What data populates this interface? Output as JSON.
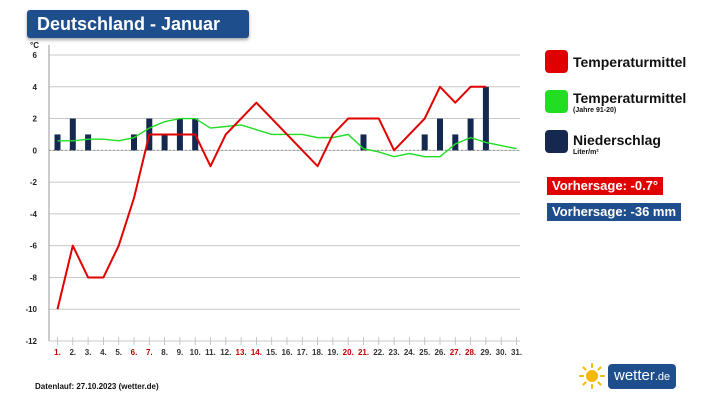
{
  "page_title": "Deutschland - Januar",
  "legend": {
    "temp": "Temperaturmittel",
    "normal": "Temperaturmittel",
    "normal_sub": "(Jahre 91-20)",
    "precip": "Niederschlag",
    "precip_sub": "Liter/m²"
  },
  "forecast": {
    "temp": "Vorhersage: -0.7°",
    "precip": "Vorhersage: -36 mm"
  },
  "footer": "Datenlauf: 27.10.2023 (wetter.de)",
  "brand": {
    "name": "wetter",
    "tld": ".de"
  },
  "colors": {
    "temp": "#e10000",
    "normal": "#22dd22",
    "precip": "#142850",
    "badge_temp": "#e10000",
    "badge_precip": "#1f4e8c",
    "header": "#1f4e8c",
    "weekend_label": "#c00000"
  },
  "chart_data": {
    "type": "line",
    "ylabel": "°C",
    "ylim": [
      -12,
      6
    ],
    "yticks": [
      "6",
      "4",
      "2",
      "0",
      "-2",
      "-4",
      "-6",
      "-8",
      "-10",
      "-12"
    ],
    "categories": [
      "1.",
      "2.",
      "3.",
      "4.",
      "5.",
      "6.",
      "7.",
      "8.",
      "9.",
      "10.",
      "11.",
      "12.",
      "13.",
      "14.",
      "15.",
      "16.",
      "17.",
      "18.",
      "19.",
      "20.",
      "21.",
      "22.",
      "23.",
      "24.",
      "25.",
      "26.",
      "27.",
      "28.",
      "29.",
      "30.",
      "31."
    ],
    "weekend_days": [
      1,
      6,
      7,
      13,
      14,
      20,
      21,
      27,
      28
    ],
    "grid": true,
    "series": [
      {
        "name": "Temperaturmittel",
        "type": "line",
        "values": [
          -10,
          -6,
          -8,
          -8,
          -6,
          -3,
          1,
          1,
          1,
          1,
          -1,
          1,
          2,
          3,
          2,
          1,
          0,
          -1,
          1,
          2,
          2,
          2,
          0,
          1,
          2,
          4,
          3,
          4,
          4,
          null,
          null
        ]
      },
      {
        "name": "Temperaturmittel",
        "type": "line",
        "subtitle": "(Jahre 91-20)",
        "values": [
          0.6,
          0.6,
          0.7,
          0.7,
          0.6,
          0.8,
          1.4,
          1.8,
          2.0,
          2.0,
          1.4,
          1.5,
          1.6,
          1.3,
          1.0,
          1.0,
          1.0,
          0.8,
          0.8,
          1.0,
          0.1,
          -0.1,
          -0.4,
          -0.2,
          -0.4,
          -0.4,
          0.4,
          0.8,
          0.5,
          0.3,
          0.1
        ]
      },
      {
        "name": "Niederschlag",
        "type": "bar",
        "values": [
          1,
          2,
          1,
          0,
          0,
          1,
          2,
          1,
          2,
          2,
          0,
          0,
          0,
          0,
          0,
          0,
          0,
          0,
          0,
          0,
          1,
          0,
          0,
          0,
          1,
          2,
          1,
          2,
          4,
          0,
          0
        ]
      }
    ]
  }
}
